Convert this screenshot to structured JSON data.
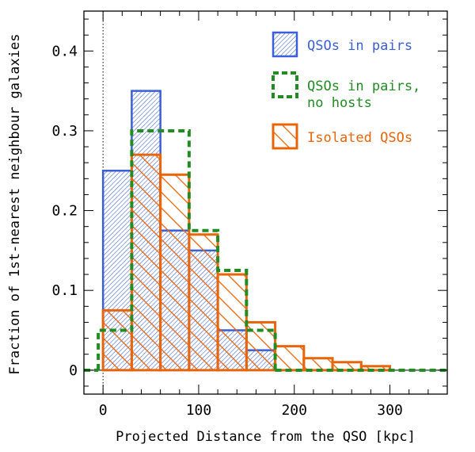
{
  "chart_data": {
    "type": "histogram",
    "title": "",
    "xlabel": "Projected Distance from the QSO [kpc]",
    "ylabel": "Fraction of 1st-nearest neighbour galaxies",
    "xlim": [
      -20,
      360
    ],
    "ylim": [
      -0.03,
      0.45
    ],
    "xticks": [
      0,
      100,
      200,
      300
    ],
    "xtick_labels": [
      "0",
      "100",
      "200",
      "300"
    ],
    "yticks": [
      0,
      0.1,
      0.2,
      0.3,
      0.4
    ],
    "ytick_labels": [
      "0",
      "0.1",
      "0.2",
      "0.3",
      "0.4"
    ],
    "reference_line": {
      "x": 0,
      "style": "dotted"
    },
    "bin_width": 30,
    "bin_edges": [
      0,
      30,
      60,
      90,
      120,
      150,
      180,
      210,
      240,
      270,
      300
    ],
    "series": [
      {
        "name": "QSOs in pairs",
        "color": "#3b5fd4",
        "style": "filled-fine-hatch",
        "bin_edges": [
          0,
          30,
          60,
          90,
          120,
          150,
          180
        ],
        "values": [
          0.25,
          0.35,
          0.175,
          0.15,
          0.05,
          0.025
        ]
      },
      {
        "name": "QSOs in pairs, no hosts",
        "color": "#228b22",
        "style": "dashed-outline",
        "bin_edges": [
          -5,
          0,
          30,
          60,
          90,
          120,
          150,
          180
        ],
        "values": [
          0.05,
          0.05,
          0.3,
          0.3,
          0.175,
          0.125,
          0.05
        ]
      },
      {
        "name": "Isolated QSOs",
        "color": "#e8650a",
        "style": "coarse-hatch",
        "bin_edges": [
          0,
          30,
          60,
          90,
          120,
          150,
          180,
          210,
          240,
          270,
          300
        ],
        "values": [
          0.075,
          0.27,
          0.245,
          0.17,
          0.12,
          0.06,
          0.03,
          0.015,
          0.01,
          0.005
        ]
      }
    ],
    "legend": {
      "placement": "top-right",
      "entries": [
        {
          "label_lines": [
            "QSOs in pairs"
          ],
          "color": "#3b5fd4",
          "style": "filled-fine-hatch"
        },
        {
          "label_lines": [
            "QSOs in pairs,",
            "no hosts"
          ],
          "color": "#228b22",
          "style": "dashed-outline"
        },
        {
          "label_lines": [
            "Isolated QSOs"
          ],
          "color": "#e8650a",
          "style": "coarse-hatch"
        }
      ]
    }
  }
}
